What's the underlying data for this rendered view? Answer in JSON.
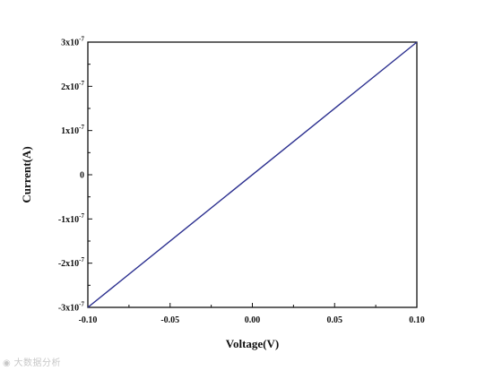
{
  "chart_data": {
    "type": "line",
    "title": "",
    "xlabel": "Voltage(V)",
    "ylabel": "Current(A)",
    "xlim": [
      -0.1,
      0.1
    ],
    "ylim": [
      -3e-07,
      3e-07
    ],
    "x_ticks": [
      -0.1,
      -0.05,
      0.0,
      0.05,
      0.1
    ],
    "x_tick_labels": [
      "-0.10",
      "-0.05",
      "0.00",
      "0.05",
      "0.10"
    ],
    "y_ticks": [
      -3e-07,
      -2e-07,
      -1e-07,
      0,
      1e-07,
      2e-07,
      3e-07
    ],
    "y_tick_labels": [
      {
        "coef": "-3x10",
        "exp": "-7"
      },
      {
        "coef": "-2x10",
        "exp": "-7"
      },
      {
        "coef": "-1x10",
        "exp": "-7"
      },
      {
        "coef": "0",
        "exp": ""
      },
      {
        "coef": "1x10",
        "exp": "-7"
      },
      {
        "coef": "2x10",
        "exp": "-7"
      },
      {
        "coef": "3x10",
        "exp": "-7"
      }
    ],
    "grid": false,
    "series": [
      {
        "color": "#2b2f8f",
        "x": [
          -0.1,
          0.1
        ],
        "y": [
          -3e-07,
          3e-07
        ]
      }
    ]
  },
  "watermark": {
    "text": "大数据分析",
    "icon": "camera-icon"
  }
}
